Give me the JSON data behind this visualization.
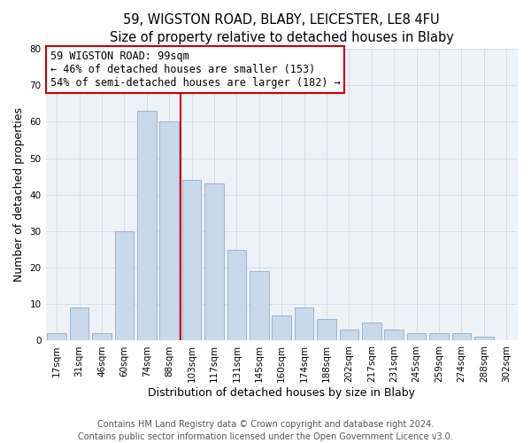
{
  "title": "59, WIGSTON ROAD, BLABY, LEICESTER, LE8 4FU",
  "subtitle": "Size of property relative to detached houses in Blaby",
  "xlabel": "Distribution of detached houses by size in Blaby",
  "ylabel": "Number of detached properties",
  "bar_labels": [
    "17sqm",
    "31sqm",
    "46sqm",
    "60sqm",
    "74sqm",
    "88sqm",
    "103sqm",
    "117sqm",
    "131sqm",
    "145sqm",
    "160sqm",
    "174sqm",
    "188sqm",
    "202sqm",
    "217sqm",
    "231sqm",
    "245sqm",
    "259sqm",
    "274sqm",
    "288sqm",
    "302sqm"
  ],
  "bar_values": [
    2,
    9,
    2,
    30,
    63,
    60,
    44,
    43,
    25,
    19,
    7,
    9,
    6,
    3,
    5,
    3,
    2,
    2,
    2,
    1,
    0
  ],
  "bar_color": "#c8d9eb",
  "bar_edge_color": "#9ab4d0",
  "vline_color": "#cc0000",
  "annotation_title": "59 WIGSTON ROAD: 99sqm",
  "annotation_line1": "← 46% of detached houses are smaller (153)",
  "annotation_line2": "54% of semi-detached houses are larger (182) →",
  "annotation_box_color": "#ffffff",
  "annotation_box_edge": "#cc0000",
  "ylim": [
    0,
    80
  ],
  "yticks": [
    0,
    10,
    20,
    30,
    40,
    50,
    60,
    70,
    80
  ],
  "footer_line1": "Contains HM Land Registry data © Crown copyright and database right 2024.",
  "footer_line2": "Contains public sector information licensed under the Open Government Licence v3.0.",
  "title_fontsize": 10.5,
  "subtitle_fontsize": 9.5,
  "axis_label_fontsize": 9,
  "tick_fontsize": 7.5,
  "footer_fontsize": 7,
  "annotation_fontsize": 8.5,
  "bg_color": "#eef2f8"
}
